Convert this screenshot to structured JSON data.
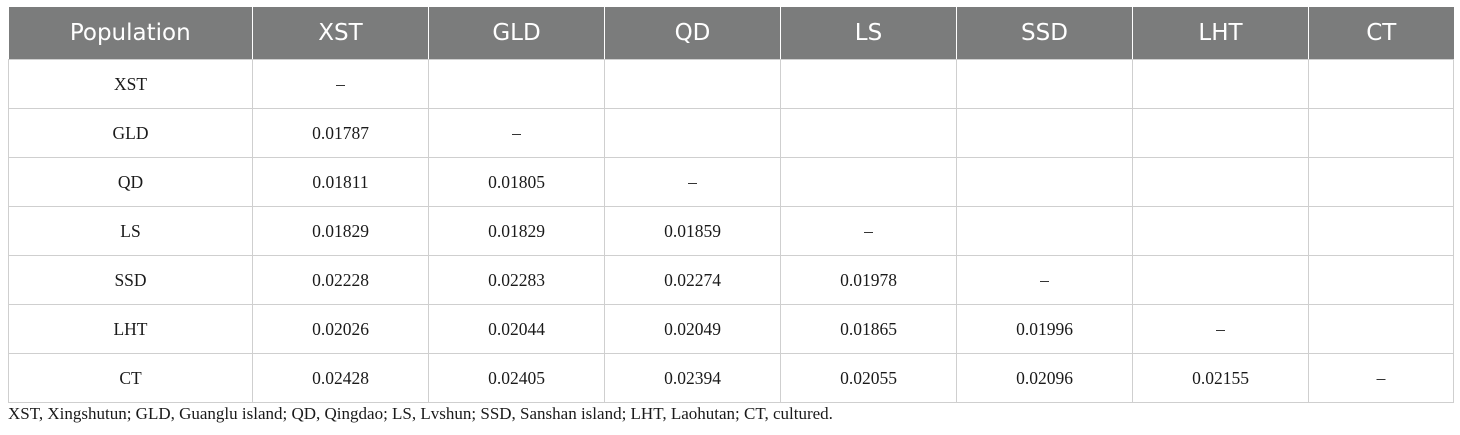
{
  "table": {
    "headers": [
      "Population",
      "XST",
      "GLD",
      "QD",
      "LS",
      "SSD",
      "LHT",
      "CT"
    ],
    "rows": [
      [
        "XST",
        "–",
        "",
        "",
        "",
        "",
        "",
        ""
      ],
      [
        "GLD",
        "0.01787",
        "–",
        "",
        "",
        "",
        "",
        ""
      ],
      [
        "QD",
        "0.01811",
        "0.01805",
        "–",
        "",
        "",
        "",
        ""
      ],
      [
        "LS",
        "0.01829",
        "0.01829",
        "0.01859",
        "–",
        "",
        "",
        ""
      ],
      [
        "SSD",
        "0.02228",
        "0.02283",
        "0.02274",
        "0.01978",
        "–",
        "",
        ""
      ],
      [
        "LHT",
        "0.02026",
        "0.02044",
        "0.02049",
        "0.01865",
        "0.01996",
        "–",
        ""
      ],
      [
        "CT",
        "0.02428",
        "0.02405",
        "0.02394",
        "0.02055",
        "0.02096",
        "0.02155",
        "–"
      ]
    ]
  },
  "footnote": "XST, Xingshutun; GLD, Guanglu island; QD, Qingdao; LS, Lvshun; SSD, Sanshan island; LHT, Laohutan; CT, cultured."
}
